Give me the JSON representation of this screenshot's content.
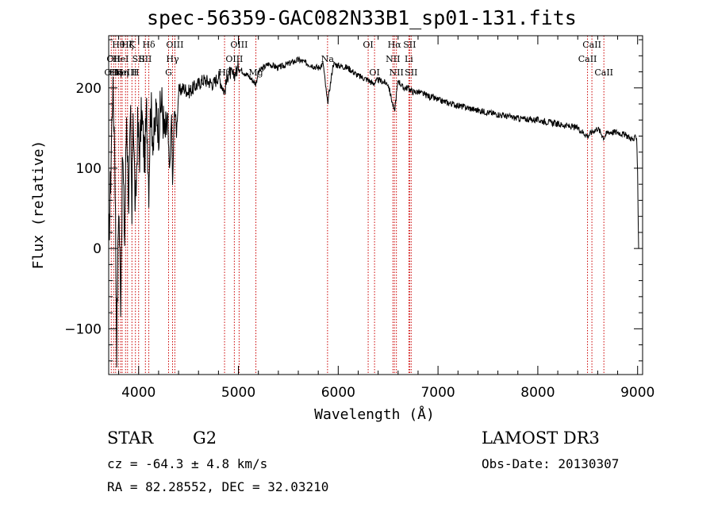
{
  "title": "spec-56359-GAC082N33B1_sp01-131.fits",
  "info": {
    "object_class": "STAR",
    "subclass": "G2",
    "survey": "LAMOST DR3",
    "cz": "cz = -64.3 ± 4.8 km/s",
    "obs_date": "Obs-Date: 20130307",
    "radec": "RA =  82.28552, DEC =  32.03210"
  },
  "colors": {
    "line_marker": "#cc0000",
    "spectrum": "#000000",
    "axes": "#000000"
  },
  "chart_data": {
    "type": "line",
    "title": "spec-56359-GAC082N33B1_sp01-131.fits",
    "xlabel": "Wavelength (Å)",
    "ylabel": "Flux (relative)",
    "xlim": [
      3700,
      9050
    ],
    "ylim": [
      -157,
      265
    ],
    "x_ticks": [
      4000,
      5000,
      6000,
      7000,
      8000,
      9000
    ],
    "y_ticks": [
      -100,
      0,
      100,
      200
    ],
    "series": [
      {
        "name": "flux",
        "x": [
          3700,
          3720,
          3740,
          3760,
          3780,
          3800,
          3820,
          3840,
          3860,
          3880,
          3900,
          3920,
          3933,
          3945,
          3968,
          3990,
          4010,
          4030,
          4060,
          4080,
          4102,
          4120,
          4150,
          4180,
          4200,
          4230,
          4260,
          4290,
          4310,
          4330,
          4340,
          4360,
          4380,
          4400,
          4450,
          4500,
          4550,
          4600,
          4650,
          4700,
          4750,
          4800,
          4861,
          4900,
          4950,
          5000,
          5100,
          5175,
          5200,
          5300,
          5400,
          5500,
          5600,
          5700,
          5800,
          5850,
          5893,
          5950,
          6000,
          6100,
          6200,
          6300,
          6350,
          6400,
          6500,
          6563,
          6600,
          6650,
          6700,
          6750,
          6800,
          6900,
          7000,
          7200,
          7400,
          7600,
          7800,
          8000,
          8200,
          8400,
          8500,
          8542,
          8600,
          8662,
          8700,
          8800,
          8900,
          8960,
          8990,
          9000,
          9010
        ],
        "y": [
          0,
          90,
          200,
          140,
          -120,
          60,
          -60,
          120,
          10,
          170,
          60,
          160,
          30,
          180,
          40,
          150,
          120,
          170,
          110,
          170,
          80,
          180,
          130,
          175,
          150,
          185,
          140,
          155,
          95,
          165,
          75,
          180,
          145,
          195,
          200,
          195,
          200,
          205,
          210,
          208,
          205,
          215,
          195,
          220,
          215,
          225,
          215,
          205,
          220,
          230,
          225,
          230,
          235,
          230,
          225,
          230,
          180,
          230,
          228,
          225,
          215,
          210,
          205,
          210,
          205,
          170,
          210,
          200,
          200,
          195,
          195,
          190,
          185,
          178,
          172,
          167,
          162,
          160,
          155,
          150,
          140,
          145,
          150,
          138,
          145,
          145,
          140,
          135,
          140,
          95,
          0
        ]
      }
    ],
    "lines": [
      {
        "wave": 3726,
        "label": "OII",
        "row": 3
      },
      {
        "wave": 3750,
        "label": "OII",
        "row": 2
      },
      {
        "wave": 3770,
        "label": "Hη",
        "row": 3
      },
      {
        "wave": 3798,
        "label": "Hθ",
        "row": 1
      },
      {
        "wave": 3820,
        "label": "HeI",
        "row": 2
      },
      {
        "wave": 3835,
        "label": "Hη",
        "row": 3
      },
      {
        "wave": 3869,
        "label": "NeIII",
        "row": 3
      },
      {
        "wave": 3889,
        "label": "Hζ",
        "row": 1
      },
      {
        "wave": 3933,
        "label": "K",
        "row": 1
      },
      {
        "wave": 3968,
        "label": "H",
        "row": 3
      },
      {
        "wave": 4000,
        "label": "SII",
        "row": 2
      },
      {
        "wave": 4068,
        "label": "SII",
        "row": 2
      },
      {
        "wave": 4102,
        "label": "Hδ",
        "row": 1
      },
      {
        "wave": 4300,
        "label": "G",
        "row": 3
      },
      {
        "wave": 4340,
        "label": "Hγ",
        "row": 2
      },
      {
        "wave": 4363,
        "label": "OIII",
        "row": 1
      },
      {
        "wave": 4861,
        "label": "Hβ",
        "row": 3
      },
      {
        "wave": 4959,
        "label": "OIII",
        "row": 2
      },
      {
        "wave": 5007,
        "label": "OIII",
        "row": 1
      },
      {
        "wave": 5175,
        "label": "Mg",
        "row": 3
      },
      {
        "wave": 5893,
        "label": "Na",
        "row": 2
      },
      {
        "wave": 6300,
        "label": "OI",
        "row": 1
      },
      {
        "wave": 6364,
        "label": "OI",
        "row": 3
      },
      {
        "wave": 6548,
        "label": "NII",
        "row": 2
      },
      {
        "wave": 6563,
        "label": "Hα",
        "row": 1
      },
      {
        "wave": 6583,
        "label": "NII",
        "row": 3
      },
      {
        "wave": 6708,
        "label": "Li",
        "row": 2
      },
      {
        "wave": 6716,
        "label": "SII",
        "row": 1
      },
      {
        "wave": 6731,
        "label": "SII",
        "row": 3
      },
      {
        "wave": 8498,
        "label": "CaII",
        "row": 2
      },
      {
        "wave": 8542,
        "label": "CaII",
        "row": 1
      },
      {
        "wave": 8662,
        "label": "CaII",
        "row": 3
      }
    ]
  }
}
